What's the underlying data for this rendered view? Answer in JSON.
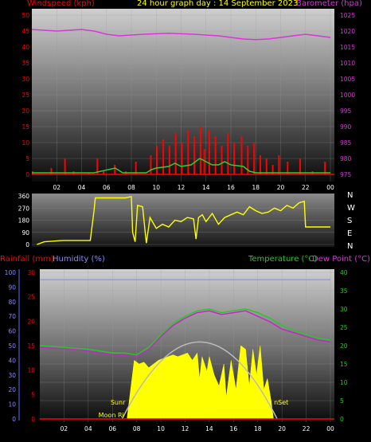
{
  "header": {
    "windspeed_label": "Windspeed (kph)",
    "title": "24 hour graph day : 14 September 2023",
    "barometer_label": "Barometer (hpa)"
  },
  "lower_header": {
    "rainfall_label": "Rainfall (mm)",
    "humidity_label": "Humidity (%)",
    "temperature_label": "Temperature (°C)",
    "dewpoint_label": "Dew Point (°C)"
  },
  "annotations": {
    "sunrise": "Sunr",
    "sunset": "nSet",
    "moonrise": "Moon Ri"
  },
  "colors": {
    "windspeed": "#ff0000",
    "gust": "#33cc33",
    "barometer": "#dd33dd",
    "direction": "#ffff00",
    "temperature": "#22cc22",
    "dewpoint": "#cc22cc",
    "humidity_line": "#8888ff",
    "solar": "#ffff00",
    "sun_arc": "#bbbbbb",
    "rain": "#ff0000"
  },
  "chart_data": [
    {
      "type": "bar",
      "name": "wind",
      "x_ticks": [
        "02",
        "04",
        "06",
        "08",
        "10",
        "12",
        "14",
        "16",
        "18",
        "20",
        "22",
        "00"
      ],
      "y_left": {
        "label": "Windspeed (kph)",
        "ticks": [
          0,
          5,
          10,
          15,
          20,
          25,
          30,
          35,
          40,
          45,
          50
        ],
        "range": [
          0,
          50
        ]
      },
      "y_right": {
        "label": "Barometer (hpa)",
        "ticks": [
          975,
          980,
          985,
          990,
          995,
          1000,
          1005,
          1010,
          1015,
          1020,
          1025
        ],
        "range": [
          975,
          1025
        ]
      },
      "barometer": [
        [
          0,
          1020.5
        ],
        [
          2,
          1020
        ],
        [
          4,
          1020.5
        ],
        [
          5,
          1020
        ],
        [
          6,
          1019
        ],
        [
          7,
          1018.5
        ],
        [
          9,
          1019
        ],
        [
          11,
          1019.3
        ],
        [
          13,
          1019
        ],
        [
          15,
          1018.5
        ],
        [
          17,
          1017.5
        ],
        [
          18,
          1017.3
        ],
        [
          19,
          1017.5
        ],
        [
          20,
          1018
        ],
        [
          22,
          1019
        ],
        [
          23,
          1018.5
        ],
        [
          24,
          1018
        ]
      ],
      "windspeed": [
        [
          0,
          1
        ],
        [
          1.5,
          2
        ],
        [
          2.6,
          5
        ],
        [
          3.3,
          1
        ],
        [
          4.5,
          0.5
        ],
        [
          5.2,
          5
        ],
        [
          5.7,
          1
        ],
        [
          6.6,
          3
        ],
        [
          7.5,
          1
        ],
        [
          8.3,
          4
        ],
        [
          9.5,
          6
        ],
        [
          10,
          9
        ],
        [
          10.5,
          11
        ],
        [
          11,
          9
        ],
        [
          11.5,
          13
        ],
        [
          12,
          10
        ],
        [
          12.5,
          14
        ],
        [
          13,
          12
        ],
        [
          13.5,
          15
        ],
        [
          13.8,
          8
        ],
        [
          14.2,
          14
        ],
        [
          14.7,
          12
        ],
        [
          15.2,
          9
        ],
        [
          15.7,
          13
        ],
        [
          16.2,
          10
        ],
        [
          16.8,
          12
        ],
        [
          17.3,
          9
        ],
        [
          17.8,
          10
        ],
        [
          18.3,
          6
        ],
        [
          18.8,
          5
        ],
        [
          19.3,
          3
        ],
        [
          19.8,
          6
        ],
        [
          20.5,
          4
        ],
        [
          21.5,
          5
        ],
        [
          22.5,
          1
        ],
        [
          23.5,
          4
        ]
      ],
      "gust": [
        [
          0,
          0.5
        ],
        [
          5,
          0.5
        ],
        [
          6.7,
          2
        ],
        [
          7.3,
          0.5
        ],
        [
          9.2,
          0.5
        ],
        [
          9.6,
          1.5
        ],
        [
          10,
          2
        ],
        [
          11,
          2.5
        ],
        [
          11.5,
          3.5
        ],
        [
          12,
          2.5
        ],
        [
          12.8,
          3
        ],
        [
          13.5,
          5
        ],
        [
          14,
          4
        ],
        [
          14.5,
          3
        ],
        [
          15,
          3
        ],
        [
          15.5,
          4
        ],
        [
          16,
          3
        ],
        [
          17,
          2.5
        ],
        [
          17.5,
          1
        ],
        [
          18,
          0.5
        ],
        [
          24,
          0.5
        ]
      ]
    },
    {
      "type": "line",
      "name": "wind-direction",
      "y_ticks": [
        0,
        90,
        180,
        270,
        360
      ],
      "compass": [
        "N",
        "W",
        "S",
        "E",
        "N"
      ],
      "range": [
        0,
        360
      ],
      "direction": [
        [
          0.4,
          0
        ],
        [
          1,
          20
        ],
        [
          2.5,
          30
        ],
        [
          4.7,
          30
        ],
        [
          5,
          250
        ],
        [
          5.1,
          345
        ],
        [
          7.5,
          345
        ],
        [
          8,
          355
        ],
        [
          8.1,
          90
        ],
        [
          8.3,
          20
        ],
        [
          8.5,
          290
        ],
        [
          8.9,
          280
        ],
        [
          9.2,
          10
        ],
        [
          9.5,
          200
        ],
        [
          10,
          120
        ],
        [
          10.5,
          150
        ],
        [
          11,
          130
        ],
        [
          11.5,
          180
        ],
        [
          12,
          170
        ],
        [
          12.5,
          200
        ],
        [
          13,
          190
        ],
        [
          13.2,
          40
        ],
        [
          13.4,
          200
        ],
        [
          13.7,
          220
        ],
        [
          14,
          170
        ],
        [
          14.5,
          230
        ],
        [
          15,
          150
        ],
        [
          15.5,
          200
        ],
        [
          16,
          220
        ],
        [
          16.5,
          240
        ],
        [
          17,
          220
        ],
        [
          17.5,
          280
        ],
        [
          18,
          250
        ],
        [
          18.5,
          230
        ],
        [
          19,
          240
        ],
        [
          19.5,
          270
        ],
        [
          20,
          250
        ],
        [
          20.5,
          290
        ],
        [
          21,
          270
        ],
        [
          21.5,
          310
        ],
        [
          21.9,
          320
        ],
        [
          22,
          130
        ],
        [
          24,
          130
        ]
      ]
    },
    {
      "type": "line",
      "name": "temperature-humidity",
      "x_ticks": [
        "02",
        "04",
        "06",
        "08",
        "10",
        "12",
        "14",
        "16",
        "18",
        "20",
        "22",
        "00"
      ],
      "y_left_humidity": {
        "label": "Humidity (%)",
        "ticks": [
          0,
          10,
          20,
          30,
          40,
          50,
          60,
          70,
          80,
          90,
          100
        ],
        "range": [
          0,
          100
        ]
      },
      "y_left_rain": {
        "label": "Rainfall (mm)",
        "ticks": [
          0,
          5,
          10,
          15,
          20,
          25,
          30
        ],
        "range": [
          0,
          30
        ]
      },
      "y_right": {
        "label": "Temperature (°C)",
        "ticks": [
          0,
          5,
          10,
          15,
          20,
          25,
          30,
          35,
          40
        ],
        "range": [
          0,
          40
        ]
      },
      "humidity": [
        [
          0,
          95
        ],
        [
          24,
          95
        ]
      ],
      "temperature": [
        [
          0,
          20
        ],
        [
          2,
          19.5
        ],
        [
          4,
          19
        ],
        [
          5,
          18.5
        ],
        [
          6,
          18
        ],
        [
          7,
          18
        ],
        [
          8,
          17.5
        ],
        [
          9,
          19.5
        ],
        [
          10,
          23
        ],
        [
          11,
          26
        ],
        [
          12,
          28
        ],
        [
          13,
          29.5
        ],
        [
          14,
          30
        ],
        [
          15,
          29
        ],
        [
          16,
          29.5
        ],
        [
          17,
          30
        ],
        [
          18,
          29
        ],
        [
          19,
          27.5
        ],
        [
          20,
          25.5
        ],
        [
          21,
          24
        ],
        [
          22,
          23
        ],
        [
          23,
          22
        ],
        [
          24,
          21.5
        ]
      ],
      "dewpoint": [
        [
          0,
          19.5
        ],
        [
          3,
          19
        ],
        [
          5,
          18
        ],
        [
          6,
          17.5
        ],
        [
          8,
          17
        ],
        [
          9,
          19
        ],
        [
          10,
          22.5
        ],
        [
          11,
          25.5
        ],
        [
          12,
          27.5
        ],
        [
          13,
          29
        ],
        [
          14,
          29.5
        ],
        [
          15,
          28.5
        ],
        [
          16,
          29
        ],
        [
          17,
          29.5
        ],
        [
          18,
          28
        ],
        [
          19,
          26.5
        ],
        [
          20,
          24.5
        ],
        [
          21,
          23.5
        ],
        [
          22,
          22.5
        ],
        [
          23,
          21.5
        ],
        [
          24,
          21
        ]
      ],
      "solar_range": [
        0,
        40
      ],
      "solar": [
        [
          7.2,
          0
        ],
        [
          7.8,
          16
        ],
        [
          8.2,
          15
        ],
        [
          8.6,
          15.5
        ],
        [
          9,
          14
        ],
        [
          9.4,
          15
        ],
        [
          9.8,
          16
        ],
        [
          10.2,
          16.5
        ],
        [
          10.6,
          17
        ],
        [
          11,
          17.5
        ],
        [
          11.4,
          17
        ],
        [
          11.8,
          17.5
        ],
        [
          12.2,
          18
        ],
        [
          12.6,
          16
        ],
        [
          13,
          18
        ],
        [
          13.2,
          11
        ],
        [
          13.4,
          17
        ],
        [
          13.8,
          13
        ],
        [
          14,
          17
        ],
        [
          14.4,
          12
        ],
        [
          14.8,
          9
        ],
        [
          15.2,
          15
        ],
        [
          15.4,
          6
        ],
        [
          15.8,
          16
        ],
        [
          16.2,
          8
        ],
        [
          16.6,
          20
        ],
        [
          17,
          19
        ],
        [
          17.3,
          9
        ],
        [
          17.6,
          19
        ],
        [
          17.9,
          12
        ],
        [
          18.2,
          20
        ],
        [
          18.5,
          8
        ],
        [
          18.8,
          11
        ],
        [
          19.1,
          5
        ],
        [
          19.3,
          0
        ]
      ],
      "sun_arc": [
        [
          6.8,
          0
        ],
        [
          13.2,
          21
        ],
        [
          19.6,
          0
        ]
      ]
    }
  ]
}
